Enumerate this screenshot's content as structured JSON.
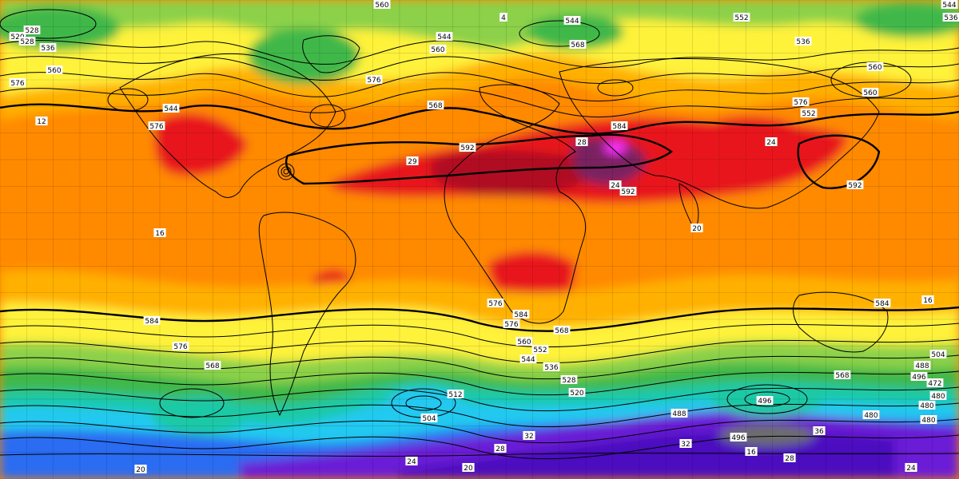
{
  "map": {
    "colors": {
      "deep_purple": "#4b0bbf",
      "purple": "#6a1fd6",
      "blue": "#2b6cf2",
      "cyan": "#21c9f0",
      "teal": "#1fc9a6",
      "green": "#3fb84a",
      "light_green": "#8cd14a",
      "yellow": "#fff23a",
      "light_orange": "#ffb000",
      "orange": "#ff8a00",
      "red_orange": "#ff5a00",
      "red": "#e8141e",
      "dark_red": "#b00820",
      "maroon": "#7a2060",
      "magenta": "#ff33ff",
      "grey": "#6d6d6d"
    },
    "contour_labels": [
      "552",
      "4",
      "544",
      "552",
      "544",
      "536",
      "528",
      "520",
      "528",
      "536",
      "544",
      "560",
      "568",
      "536",
      "560",
      "576",
      "560",
      "576",
      "568",
      "576",
      "560",
      "552",
      "544",
      "576",
      "592",
      "29",
      "584",
      "12",
      "592",
      "24",
      "28",
      "24",
      "20",
      "16",
      "592",
      "576",
      "584",
      "576",
      "584",
      "576",
      "568",
      "568",
      "560",
      "552",
      "544",
      "536",
      "528",
      "520",
      "512",
      "504",
      "496",
      "488",
      "480",
      "480",
      "472",
      "480",
      "480",
      "488",
      "496",
      "504",
      "496",
      "32",
      "28",
      "24",
      "20",
      "16",
      "36",
      "32",
      "28",
      "24",
      "20",
      "16",
      "584",
      "568",
      "560"
    ]
  }
}
